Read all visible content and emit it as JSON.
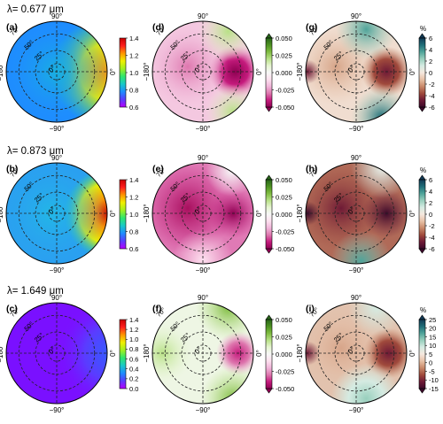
{
  "rows": [
    {
      "wavelength_label": "λ= 0.677 μm",
      "panels": [
        {
          "label": "(a)",
          "kind": "reflectance",
          "cmap": "rainbow",
          "colorbar": {
            "ticks": [
              "1.4",
              "1.2",
              "1.0",
              "0.8",
              "0.6"
            ],
            "min": 0.6,
            "max": 1.4,
            "unit": ""
          }
        },
        {
          "label": "(d)",
          "kind": "diff",
          "cmap": "pinkgreen",
          "colorbar": {
            "ticks": [
              "0.050",
              "0.025",
              "0.000",
              "-0.025",
              "-0.050"
            ],
            "min": -0.05,
            "max": 0.05,
            "unit": ""
          }
        },
        {
          "label": "(g)",
          "kind": "pct",
          "cmap": "browngreen",
          "colorbar": {
            "ticks": [
              "6",
              "4",
              "2",
              "0",
              "-2",
              "-4",
              "-6"
            ],
            "min": -6,
            "max": 6,
            "unit": "%"
          }
        }
      ]
    },
    {
      "wavelength_label": "λ= 0.873 μm",
      "panels": [
        {
          "label": "(b)",
          "kind": "reflectance",
          "cmap": "rainbow",
          "colorbar": {
            "ticks": [
              "1.4",
              "1.2",
              "1.0",
              "0.8",
              "0.6"
            ],
            "min": 0.6,
            "max": 1.4,
            "unit": ""
          }
        },
        {
          "label": "(e)",
          "kind": "diff",
          "cmap": "pinkgreen",
          "colorbar": {
            "ticks": [
              "0.050",
              "0.025",
              "0.000",
              "-0.025",
              "-0.050"
            ],
            "min": -0.05,
            "max": 0.05,
            "unit": ""
          }
        },
        {
          "label": "(h)",
          "kind": "pct",
          "cmap": "browngreen",
          "colorbar": {
            "ticks": [
              "6",
              "4",
              "2",
              "0",
              "-2",
              "-4",
              "-6"
            ],
            "min": -6,
            "max": 6,
            "unit": "%"
          }
        }
      ]
    },
    {
      "wavelength_label": "λ= 1.649 μm",
      "panels": [
        {
          "label": "(c)",
          "kind": "reflectance",
          "cmap": "rainbow",
          "colorbar": {
            "ticks": [
              "1.4",
              "1.2",
              "1.0",
              "0.8",
              "0.6",
              "0.4",
              "0.2",
              "0.0"
            ],
            "min": 0.0,
            "max": 1.4,
            "unit": ""
          }
        },
        {
          "label": "(f)",
          "kind": "diff",
          "cmap": "pinkgreen",
          "colorbar": {
            "ticks": [
              "0.050",
              "0.025",
              "0.000",
              "-0.025",
              "-0.050"
            ],
            "min": -0.05,
            "max": 0.05,
            "unit": ""
          }
        },
        {
          "label": "(i)",
          "kind": "pct",
          "cmap": "browngreen",
          "colorbar": {
            "ticks": [
              "25",
              "20",
              "15",
              "10",
              "5",
              "0",
              "-5",
              "-10",
              "-15"
            ],
            "min": -15,
            "max": 25,
            "unit": "%"
          }
        }
      ]
    }
  ],
  "polar_labels": {
    "top": "90°",
    "bottom": "−90°",
    "left": "−180°",
    "right": "0°",
    "rings": [
      "70°",
      "50°",
      "25°",
      "0°"
    ]
  },
  "colors": {
    "rainbow": [
      "#b400ff",
      "#5a3cff",
      "#1e8cff",
      "#19c8c8",
      "#2ee66e",
      "#a0f020",
      "#f0f000",
      "#ff9600",
      "#ff1e1e",
      "#c80000"
    ],
    "pinkgreen": [
      "#8e0152",
      "#c51b7d",
      "#de77ae",
      "#f1b6da",
      "#fde0ef",
      "#f7f7f7",
      "#e6f5d0",
      "#b8e186",
      "#7fbc41",
      "#4d9221",
      "#276419"
    ],
    "browngreen": [
      "#3b0a2a",
      "#6e1a36",
      "#a04a3c",
      "#c98a6a",
      "#e8c2a8",
      "#f5e9df",
      "#d5ebe2",
      "#98cfbd",
      "#4fa49a",
      "#1f6e78",
      "#123a55"
    ]
  },
  "chart_data": {
    "type": "heatmap",
    "projection": "polar (azimuth around, zenith angle radial)",
    "rows": [
      "λ= 0.677 μm",
      "λ= 0.873 μm",
      "λ= 1.649 μm"
    ],
    "columns": [
      "reflectance",
      "difference",
      "percent difference"
    ],
    "azimuth_ticks": [
      "90°",
      "0°",
      "−90°",
      "−180°"
    ],
    "zenith_rings": [
      "0°",
      "25°",
      "50°",
      "70°"
    ],
    "panels": [
      {
        "label": "(a)",
        "colorbar_range": [
          0.6,
          1.4
        ]
      },
      {
        "label": "(d)",
        "colorbar_range": [
          -0.05,
          0.05
        ]
      },
      {
        "label": "(g)",
        "colorbar_range": [
          -6,
          6
        ],
        "unit": "%"
      },
      {
        "label": "(b)",
        "colorbar_range": [
          0.6,
          1.4
        ]
      },
      {
        "label": "(e)",
        "colorbar_range": [
          -0.05,
          0.05
        ]
      },
      {
        "label": "(h)",
        "colorbar_range": [
          -6,
          6
        ],
        "unit": "%"
      },
      {
        "label": "(c)",
        "colorbar_range": [
          0.0,
          1.4
        ]
      },
      {
        "label": "(f)",
        "colorbar_range": [
          -0.05,
          0.05
        ]
      },
      {
        "label": "(i)",
        "colorbar_range": [
          -15,
          25
        ],
        "unit": "%"
      }
    ]
  }
}
